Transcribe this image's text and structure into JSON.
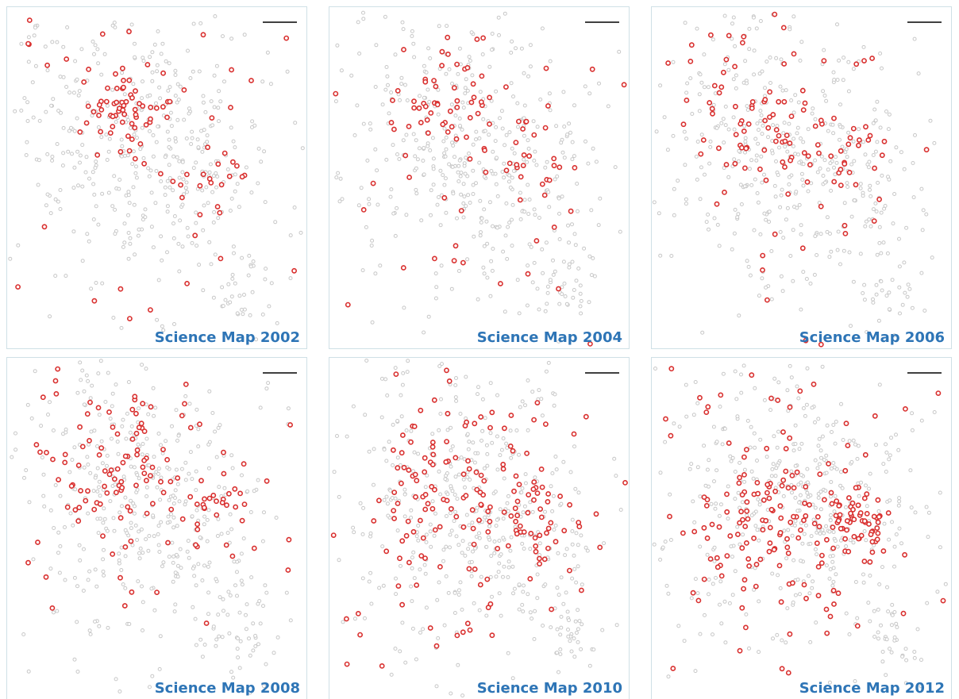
{
  "panels": [
    {
      "title": "Science Map 2002"
    },
    {
      "title": "Science Map 2004"
    },
    {
      "title": "Science Map 2006"
    },
    {
      "title": "Science Map 2008"
    },
    {
      "title": "Science Map 2010"
    },
    {
      "title": "Science Map 2012"
    }
  ]
}
